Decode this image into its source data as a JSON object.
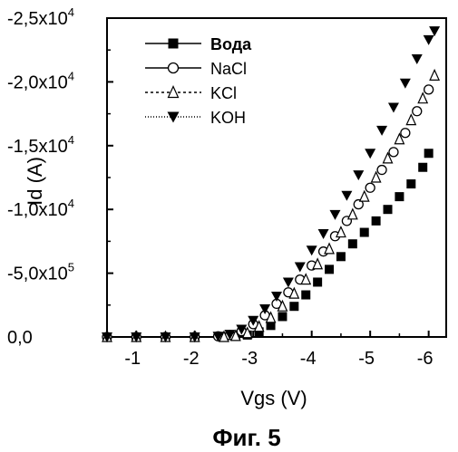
{
  "chart_data": {
    "type": "scatter",
    "xlabel": "Vgs  (V)",
    "ylabel": "Id  (A)",
    "xlim": [
      -0.5,
      -6.3
    ],
    "ylim": [
      0,
      -25000
    ],
    "x_ticks": [
      -1,
      -2,
      -3,
      -4,
      -5,
      -6
    ],
    "x_tick_labels": [
      "-1",
      "-2",
      "-3",
      "-4",
      "-5",
      "-6"
    ],
    "y_ticks": [
      0,
      -5000,
      -10000,
      -15000,
      -20000,
      -25000
    ],
    "y_tick_labels": [
      "0,0",
      "-5,0x10",
      "-1,0x10",
      "-1,5x10",
      "-2,0x10",
      "-2,5x10"
    ],
    "y_tick_exponents": [
      "",
      "5",
      "4",
      "4",
      "4",
      "4"
    ],
    "legend_position": "top-left",
    "grid": false,
    "caption": "Фиг. 5",
    "series": [
      {
        "name": "Вода",
        "marker": "square-filled",
        "x": [
          -0.5,
          -1.0,
          -1.5,
          -2.0,
          -2.5,
          -2.7,
          -2.9,
          -3.1,
          -3.3,
          -3.5,
          -3.7,
          -3.9,
          -4.1,
          -4.3,
          -4.5,
          -4.7,
          -4.9,
          -5.1,
          -5.3,
          -5.5,
          -5.7,
          -5.9,
          -6.0
        ],
        "y": [
          0,
          0,
          0,
          0,
          0,
          -50,
          -150,
          -400,
          -900,
          -1600,
          -2400,
          -3300,
          -4300,
          -5300,
          -6300,
          -7300,
          -8200,
          -9100,
          -10000,
          -11000,
          -12000,
          -13300,
          -14400
        ]
      },
      {
        "name": "NaCl",
        "marker": "circle-open",
        "x": [
          -0.5,
          -1.0,
          -1.5,
          -2.0,
          -2.4,
          -2.6,
          -2.8,
          -3.0,
          -3.2,
          -3.4,
          -3.6,
          -3.8,
          -4.0,
          -4.2,
          -4.4,
          -4.6,
          -4.8,
          -5.0,
          -5.2,
          -5.4,
          -5.6,
          -5.8,
          -6.0
        ],
        "y": [
          0,
          0,
          0,
          0,
          -50,
          -150,
          -450,
          -1000,
          -1700,
          -2600,
          -3500,
          -4500,
          -5600,
          -6700,
          -7900,
          -9100,
          -10400,
          -11700,
          -13100,
          -14500,
          -16000,
          -17700,
          -19400
        ]
      },
      {
        "name": "KCl",
        "marker": "triangle-up-open",
        "x": [
          -0.5,
          -1.0,
          -1.5,
          -2.0,
          -2.5,
          -2.7,
          -2.9,
          -3.1,
          -3.3,
          -3.5,
          -3.7,
          -3.9,
          -4.1,
          -4.3,
          -4.5,
          -4.7,
          -4.9,
          -5.1,
          -5.3,
          -5.5,
          -5.7,
          -5.9,
          -6.1
        ],
        "y": [
          0,
          0,
          0,
          0,
          0,
          -80,
          -300,
          -800,
          -1500,
          -2400,
          -3400,
          -4500,
          -5700,
          -6900,
          -8200,
          -9600,
          -11000,
          -12500,
          -14000,
          -15500,
          -17000,
          -18700,
          -20500
        ]
      },
      {
        "name": "KOH",
        "marker": "triangle-down-filled",
        "x": [
          -0.5,
          -1.0,
          -1.5,
          -2.0,
          -2.4,
          -2.6,
          -2.8,
          -3.0,
          -3.2,
          -3.4,
          -3.6,
          -3.8,
          -4.0,
          -4.2,
          -4.4,
          -4.6,
          -4.8,
          -5.0,
          -5.2,
          -5.4,
          -5.6,
          -5.8,
          -6.0,
          -6.1
        ],
        "y": [
          0,
          0,
          0,
          0,
          -50,
          -200,
          -600,
          -1300,
          -2200,
          -3200,
          -4300,
          -5500,
          -6800,
          -8100,
          -9600,
          -11100,
          -12700,
          -14400,
          -16200,
          -18000,
          -19900,
          -21800,
          -23300,
          -24000
        ]
      }
    ]
  }
}
